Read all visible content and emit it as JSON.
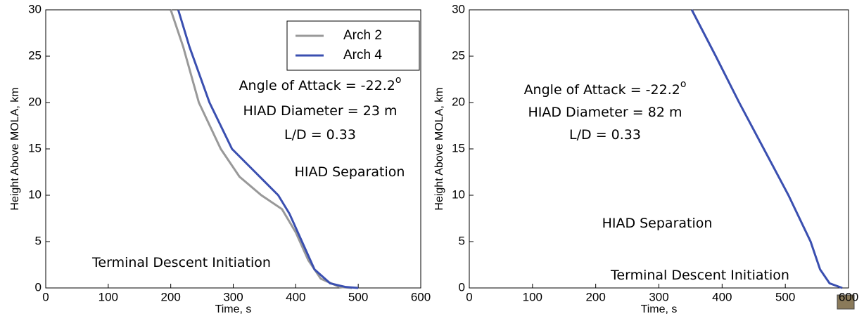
{
  "chart_data": [
    {
      "type": "line",
      "xlabel": "Time, s",
      "ylabel": "Height Above MOLA, km",
      "xlim": [
        0,
        600
      ],
      "ylim": [
        0,
        30
      ],
      "xticks": [
        0,
        100,
        200,
        300,
        400,
        500,
        600
      ],
      "yticks": [
        0,
        5,
        10,
        15,
        20,
        25,
        30
      ],
      "grid": false,
      "legend": "upper right",
      "series": [
        {
          "name": "Arch 2",
          "color": "#999999",
          "x": [
            200,
            220,
            245,
            280,
            310,
            345,
            378,
            400,
            420,
            440,
            470,
            490
          ],
          "values": [
            30,
            26,
            20,
            15,
            12,
            10,
            8.5,
            6,
            3,
            1,
            0.1,
            0
          ]
        },
        {
          "name": "Arch 4",
          "color": "#3a4fb0",
          "x": [
            212,
            230,
            262,
            298,
            335,
            372,
            390,
            410,
            430,
            455,
            480,
            500
          ],
          "values": [
            30,
            26,
            20,
            15,
            12.5,
            10,
            8,
            5,
            2,
            0.5,
            0.1,
            0
          ]
        }
      ],
      "annotations": [
        {
          "text": "Angle of Attack = -22.2",
          "sup": "o"
        },
        {
          "text": "HIAD Diameter = 23 m"
        },
        {
          "text": "L/D = 0.33"
        },
        {
          "text": "HIAD Separation"
        },
        {
          "text": "Terminal Descent Initiation"
        }
      ]
    },
    {
      "type": "line",
      "xlabel": "Time, s",
      "ylabel": "Height Above MOLA, km",
      "xlim": [
        0,
        600
      ],
      "ylim": [
        0,
        30
      ],
      "xticks": [
        0,
        100,
        200,
        300,
        400,
        500,
        600
      ],
      "yticks": [
        0,
        5,
        10,
        15,
        20,
        25,
        30
      ],
      "grid": false,
      "series": [
        {
          "color": "#3a4fb0",
          "x": [
            352,
            390,
            427,
            466,
            505,
            540,
            555,
            570,
            590
          ],
          "values": [
            30,
            25,
            20,
            15,
            10,
            5,
            2,
            0.5,
            0
          ]
        }
      ],
      "annotations": [
        {
          "text": "Angle of Attack = -22.2",
          "sup": "o"
        },
        {
          "text": "HIAD Diameter = 82 m"
        },
        {
          "text": "L/D = 0.33"
        },
        {
          "text": "HIAD Separation"
        },
        {
          "text": "Terminal Descent Initiation"
        }
      ]
    }
  ]
}
